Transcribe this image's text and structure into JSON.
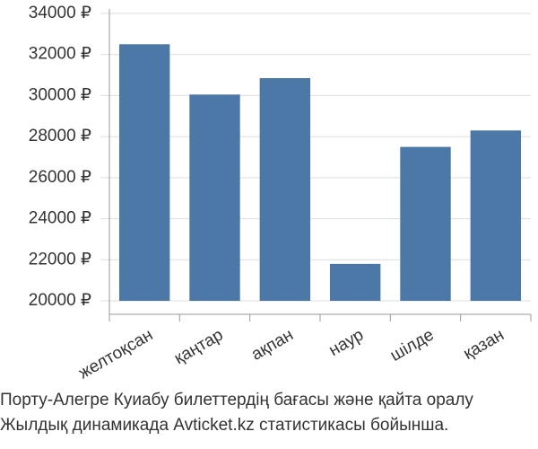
{
  "chart_data": {
    "type": "bar",
    "categories": [
      "желтоқсан",
      "қаңтар",
      "ақпан",
      "наур",
      "шілде",
      "қазан"
    ],
    "values": [
      32500,
      30050,
      30850,
      21800,
      27500,
      28300
    ],
    "color": "#4c78a8",
    "ylim": [
      20000,
      34000
    ],
    "yticks": [
      {
        "value": 20000,
        "label": "20000 ₽"
      },
      {
        "value": 22000,
        "label": "22000 ₽"
      },
      {
        "value": 24000,
        "label": "24000 ₽"
      },
      {
        "value": 26000,
        "label": "26000 ₽"
      },
      {
        "value": 28000,
        "label": "28000 ₽"
      },
      {
        "value": 30000,
        "label": "30000 ₽"
      },
      {
        "value": 32000,
        "label": "32000 ₽"
      },
      {
        "value": 34000,
        "label": "34000 ₽"
      }
    ],
    "grid": true,
    "caption": [
      "Порту-Алегре Куиабу билеттердің бағасы және қайта оралу",
      "Жылдық динамикада Avticket.kz статистикасы бойынша."
    ]
  }
}
